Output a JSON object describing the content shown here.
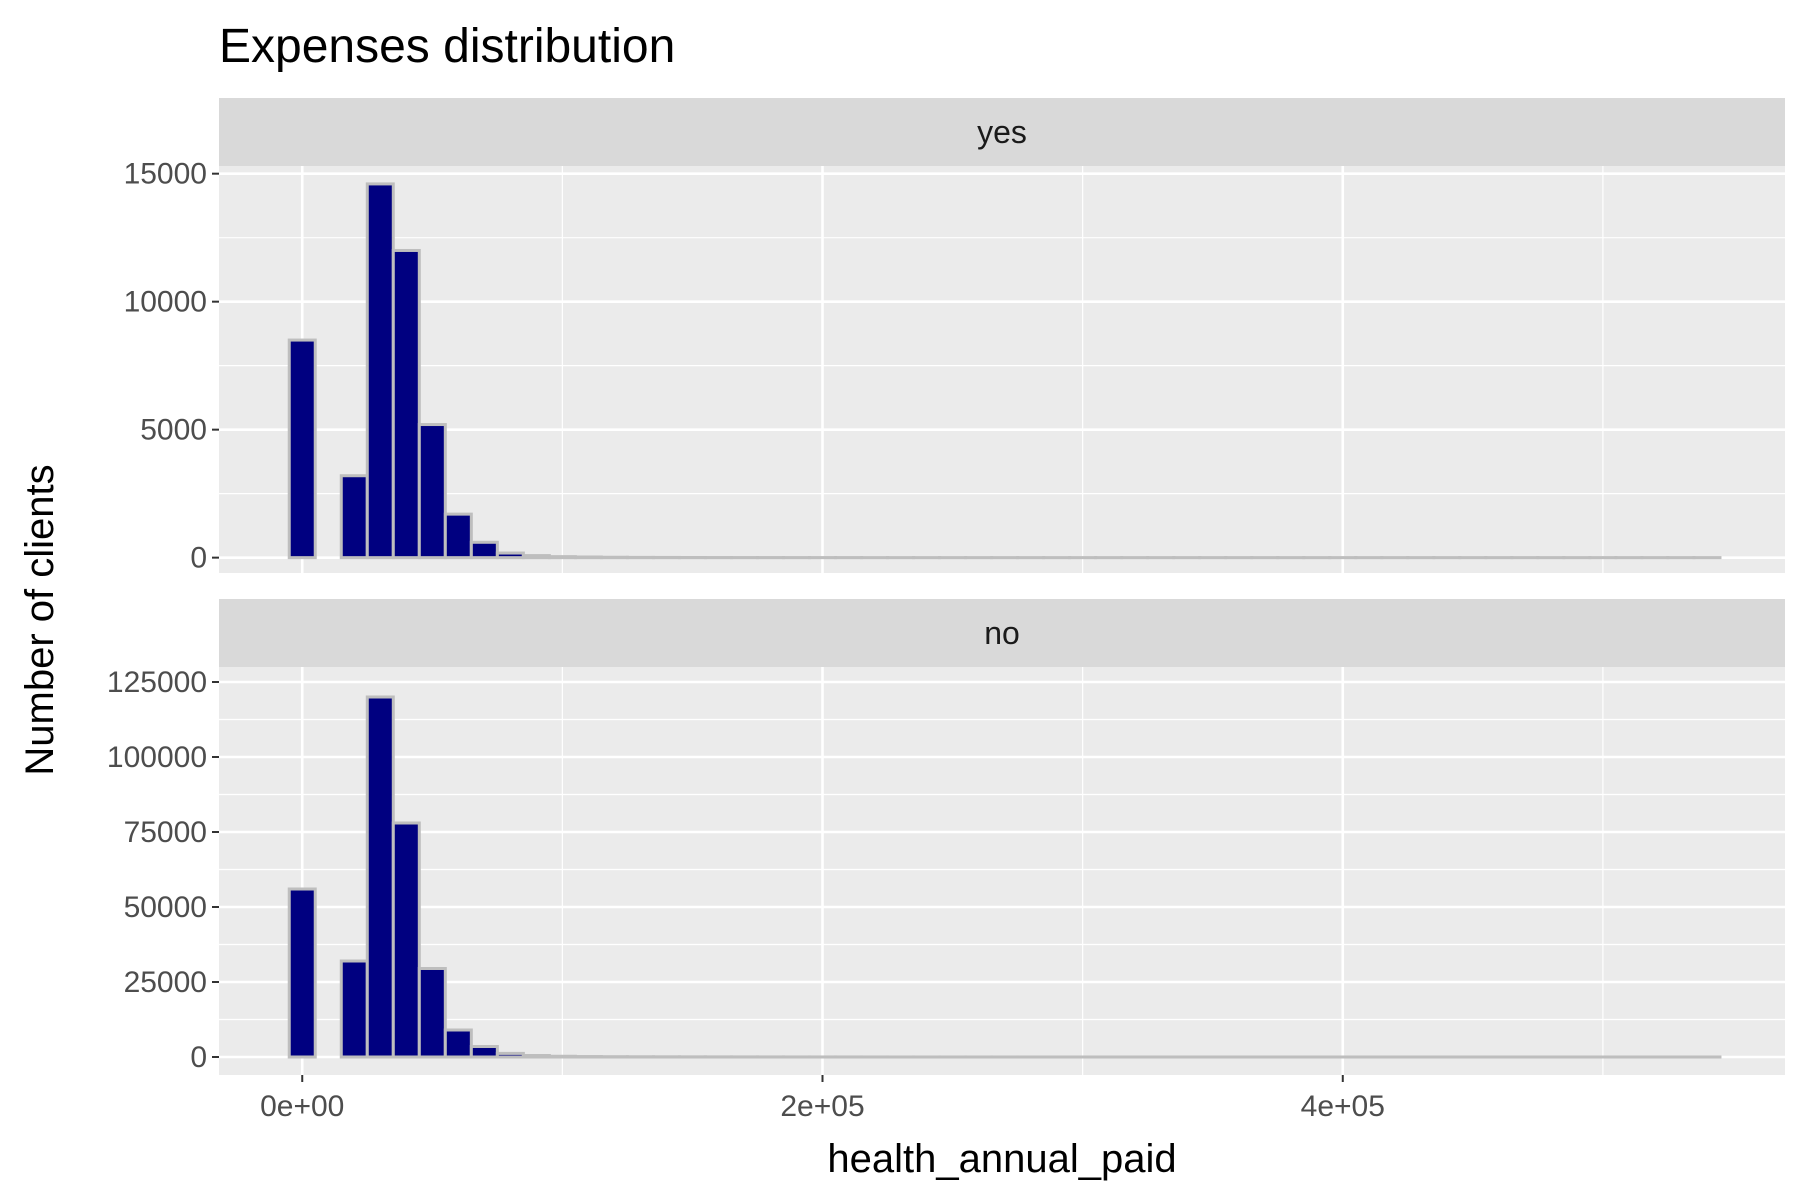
{
  "chart_data": {
    "type": "bar",
    "title": "Expenses distribution",
    "xlabel": "health_annual_paid",
    "ylabel": "Number of clients",
    "bin_width": 10000,
    "x_ticks": [
      {
        "value": 0,
        "label": "0e+00"
      },
      {
        "value": 200000,
        "label": "2e+05"
      },
      {
        "value": 400000,
        "label": "4e+05"
      }
    ],
    "xlim": [
      -32000,
      570000
    ],
    "bin_centers": [
      0,
      10000,
      20000,
      30000,
      40000,
      50000,
      60000,
      70000,
      80000,
      90000,
      100000,
      110000,
      120000,
      130000,
      140000,
      150000,
      160000,
      170000,
      180000,
      190000,
      200000,
      210000,
      220000,
      230000,
      240000,
      250000,
      260000,
      270000,
      280000,
      290000,
      300000,
      310000,
      320000,
      330000,
      340000,
      350000,
      360000,
      370000,
      380000,
      390000,
      400000,
      410000,
      420000,
      430000,
      440000,
      450000,
      460000,
      470000,
      480000,
      490000,
      500000,
      510000,
      520000,
      530000,
      540000
    ],
    "panels": [
      {
        "strip": "yes",
        "ylim": [
          -600,
          15300
        ],
        "y_ticks": [
          {
            "value": 0,
            "label": "0"
          },
          {
            "value": 5000,
            "label": "5000"
          },
          {
            "value": 10000,
            "label": "10000"
          },
          {
            "value": 15000,
            "label": "15000"
          }
        ],
        "values": [
          8500,
          0,
          3200,
          14600,
          12000,
          5200,
          1700,
          600,
          180,
          80,
          40,
          25,
          15,
          10,
          8,
          5,
          4,
          3,
          3,
          2,
          2,
          2,
          1,
          1,
          1,
          1,
          1,
          1,
          1,
          1,
          1,
          1,
          1,
          1,
          1,
          1,
          1,
          1,
          1,
          1,
          1,
          1,
          1,
          1,
          1,
          1,
          1,
          1,
          1,
          1,
          1,
          1,
          1,
          1,
          1
        ]
      },
      {
        "strip": "no",
        "ylim": [
          -6000,
          130000
        ],
        "y_ticks": [
          {
            "value": 0,
            "label": "0"
          },
          {
            "value": 25000,
            "label": "25000"
          },
          {
            "value": 50000,
            "label": "50000"
          },
          {
            "value": 75000,
            "label": "75000"
          },
          {
            "value": 100000,
            "label": "100000"
          },
          {
            "value": 125000,
            "label": "125000"
          }
        ],
        "values": [
          56000,
          0,
          32000,
          120000,
          78000,
          29500,
          9000,
          3500,
          1200,
          500,
          250,
          150,
          100,
          80,
          60,
          50,
          40,
          30,
          25,
          20,
          15,
          12,
          10,
          8,
          6,
          5,
          4,
          4,
          3,
          3,
          2,
          2,
          2,
          2,
          2,
          1,
          1,
          1,
          1,
          1,
          1,
          1,
          1,
          1,
          1,
          1,
          1,
          1,
          1,
          1,
          1,
          1,
          1,
          1,
          1
        ]
      }
    ],
    "colors": {
      "bar_fill": "#000080",
      "bar_outline": "#bebebe",
      "panel_background": "#ebebeb",
      "strip_background": "#d9d9d9",
      "grid": "#ffffff"
    }
  }
}
